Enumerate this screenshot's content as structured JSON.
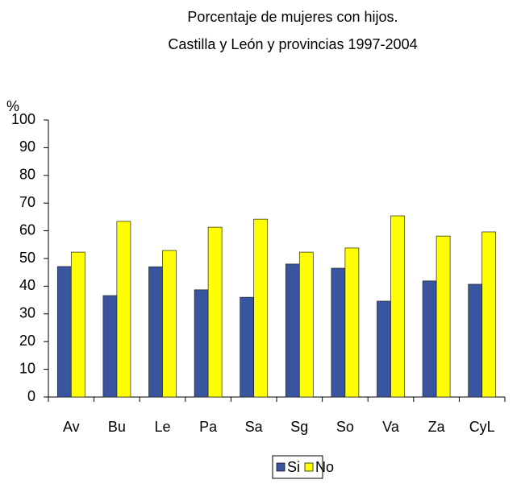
{
  "chart_data": {
    "type": "bar",
    "title": "Porcentaje de mujeres con hijos.",
    "subtitle": "Castilla y León y provincias 1997-2004",
    "y_label": "%",
    "categories": [
      "Av",
      "Bu",
      "Le",
      "Pa",
      "Sa",
      "Sg",
      "So",
      "Va",
      "Za",
      "CyL"
    ],
    "series": [
      {
        "name": "Si",
        "color": "#3a55a0",
        "values": [
          47.1,
          36.6,
          47,
          38.7,
          36,
          48,
          46.5,
          34.6,
          41.9,
          40.7
        ]
      },
      {
        "name": "No",
        "color": "#ffff00",
        "values": [
          52.3,
          63.4,
          52.9,
          61.3,
          64.2,
          52.3,
          53.8,
          65.4,
          58.1,
          59.6
        ]
      }
    ],
    "ylim": [
      0,
      100
    ],
    "yticks": [
      0,
      10,
      20,
      30,
      40,
      50,
      60,
      70,
      80,
      90,
      100
    ],
    "grid": false,
    "legend": "bottom"
  }
}
